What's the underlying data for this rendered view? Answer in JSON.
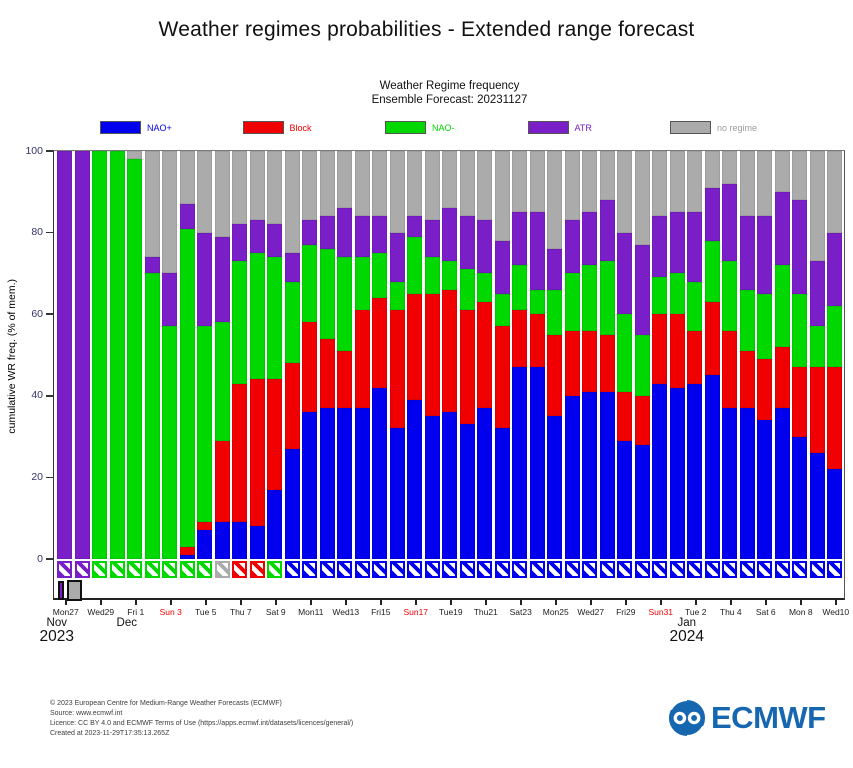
{
  "title": "Weather regimes probabilities - Extended range forecast",
  "subtitle": {
    "line1": "Weather Regime frequency",
    "line2": "Ensemble Forecast: 20231127"
  },
  "colors": {
    "nao_plus": "#0000ee",
    "block": "#f00000",
    "nao_minus": "#00d800",
    "atr": "#7a1ec8",
    "no_regime": "#ababab",
    "no_regime_label": "#9b9b9b",
    "axis_label": "#333366",
    "sunday": "#f00000",
    "tick_label": "#222222",
    "logo_blue": "#1767b0"
  },
  "legend": [
    {
      "key": "nao_plus",
      "label": "NAO+"
    },
    {
      "key": "block",
      "label": "Block"
    },
    {
      "key": "nao_minus",
      "label": "NAO-"
    },
    {
      "key": "atr",
      "label": "ATR"
    },
    {
      "key": "no_regime",
      "label": "no regime"
    }
  ],
  "y_axis": {
    "label": "cumulative WR freq. (% of mem.)",
    "ticks": [
      0,
      20,
      40,
      60,
      80,
      100
    ]
  },
  "x_axis": {
    "ticks": [
      {
        "label": "Mon27",
        "bar": 1,
        "red": false
      },
      {
        "label": "Wed29",
        "bar": 3,
        "red": false
      },
      {
        "label": "Fri 1",
        "bar": 5,
        "red": false
      },
      {
        "label": "Sun 3",
        "bar": 7,
        "red": true
      },
      {
        "label": "Tue 5",
        "bar": 9,
        "red": false
      },
      {
        "label": "Thu 7",
        "bar": 11,
        "red": false
      },
      {
        "label": "Sat 9",
        "bar": 13,
        "red": false
      },
      {
        "label": "Mon11",
        "bar": 15,
        "red": false
      },
      {
        "label": "Wed13",
        "bar": 17,
        "red": false
      },
      {
        "label": "Fri15",
        "bar": 19,
        "red": false
      },
      {
        "label": "Sun17",
        "bar": 21,
        "red": true
      },
      {
        "label": "Tue19",
        "bar": 23,
        "red": false
      },
      {
        "label": "Thu21",
        "bar": 25,
        "red": false
      },
      {
        "label": "Sat23",
        "bar": 27,
        "red": false
      },
      {
        "label": "Mon25",
        "bar": 29,
        "red": false
      },
      {
        "label": "Wed27",
        "bar": 31,
        "red": false
      },
      {
        "label": "Fri29",
        "bar": 33,
        "red": false
      },
      {
        "label": "Sun31",
        "bar": 35,
        "red": true
      },
      {
        "label": "Tue 2",
        "bar": 37,
        "red": false
      },
      {
        "label": "Thu 4",
        "bar": 39,
        "red": false
      },
      {
        "label": "Sat 6",
        "bar": 41,
        "red": false
      },
      {
        "label": "Mon 8",
        "bar": 43,
        "red": false
      },
      {
        "label": "Wed10",
        "bar": 45,
        "red": false
      }
    ],
    "months": [
      {
        "label": "Nov",
        "bar": 1
      },
      {
        "label": "Dec",
        "bar": 5
      },
      {
        "label": "Jan",
        "bar": 37
      }
    ],
    "years": [
      {
        "label": "2023",
        "bar": 1
      },
      {
        "label": "2024",
        "bar": 37
      }
    ]
  },
  "analysis_markers": [
    {
      "bar": 1,
      "color_key": "atr"
    },
    {
      "bar": 2,
      "color_key": "no_regime"
    }
  ],
  "chart_data": {
    "type": "bar",
    "stacked": true,
    "title": "Weather Regime frequency",
    "subtitle": "Ensemble Forecast: 20231127",
    "ylabel": "cumulative WR freq. (% of mem.)",
    "ylim": [
      0,
      100
    ],
    "grid": false,
    "legend_position": "top",
    "stack_order": [
      "nao_plus",
      "block",
      "nao_minus",
      "atr",
      "no_regime"
    ],
    "series_labels": {
      "nao_plus": "NAO+",
      "block": "Block",
      "nao_minus": "NAO-",
      "atr": "ATR",
      "no_regime": "no regime"
    },
    "hatch_note": "hatch = dominant regime marker drawn below the 0-line for each day",
    "bars": [
      {
        "date": "Mon 27 Nov 2023",
        "nao_plus": 0,
        "block": 0,
        "nao_minus": 0,
        "atr": 100,
        "no_regime": 0,
        "hatch": "atr"
      },
      {
        "date": "Tue 28 Nov",
        "nao_plus": 0,
        "block": 0,
        "nao_minus": 0,
        "atr": 100,
        "no_regime": 0,
        "hatch": "atr"
      },
      {
        "date": "Wed 29 Nov",
        "nao_plus": 0,
        "block": 0,
        "nao_minus": 100,
        "atr": 0,
        "no_regime": 0,
        "hatch": "nao_minus"
      },
      {
        "date": "Thu 30 Nov",
        "nao_plus": 0,
        "block": 0,
        "nao_minus": 100,
        "atr": 0,
        "no_regime": 0,
        "hatch": "nao_minus"
      },
      {
        "date": "Fri 1 Dec",
        "nao_plus": 0,
        "block": 0,
        "nao_minus": 98,
        "atr": 0,
        "no_regime": 2,
        "hatch": "nao_minus"
      },
      {
        "date": "Sat 2 Dec",
        "nao_plus": 0,
        "block": 0,
        "nao_minus": 70,
        "atr": 4,
        "no_regime": 26,
        "hatch": "nao_minus"
      },
      {
        "date": "Sun 3 Dec",
        "nao_plus": 0,
        "block": 0,
        "nao_minus": 57,
        "atr": 13,
        "no_regime": 30,
        "hatch": "nao_minus"
      },
      {
        "date": "Mon 4 Dec",
        "nao_plus": 1,
        "block": 2,
        "nao_minus": 78,
        "atr": 6,
        "no_regime": 13,
        "hatch": "nao_minus"
      },
      {
        "date": "Tue 5 Dec",
        "nao_plus": 7,
        "block": 2,
        "nao_minus": 48,
        "atr": 23,
        "no_regime": 20,
        "hatch": "nao_minus"
      },
      {
        "date": "Wed 6 Dec",
        "nao_plus": 9,
        "block": 20,
        "nao_minus": 29,
        "atr": 21,
        "no_regime": 21,
        "hatch": "no_regime"
      },
      {
        "date": "Thu 7 Dec",
        "nao_plus": 9,
        "block": 34,
        "nao_minus": 30,
        "atr": 9,
        "no_regime": 18,
        "hatch": "block"
      },
      {
        "date": "Fri 8 Dec",
        "nao_plus": 8,
        "block": 36,
        "nao_minus": 31,
        "atr": 8,
        "no_regime": 17,
        "hatch": "block"
      },
      {
        "date": "Sat 9 Dec",
        "nao_plus": 17,
        "block": 27,
        "nao_minus": 30,
        "atr": 8,
        "no_regime": 18,
        "hatch": "nao_minus"
      },
      {
        "date": "Sun 10 Dec",
        "nao_plus": 27,
        "block": 21,
        "nao_minus": 20,
        "atr": 7,
        "no_regime": 25,
        "hatch": "nao_plus"
      },
      {
        "date": "Mon 11 Dec",
        "nao_plus": 36,
        "block": 22,
        "nao_minus": 19,
        "atr": 6,
        "no_regime": 17,
        "hatch": "nao_plus"
      },
      {
        "date": "Tue 12 Dec",
        "nao_plus": 37,
        "block": 17,
        "nao_minus": 22,
        "atr": 8,
        "no_regime": 16,
        "hatch": "nao_plus"
      },
      {
        "date": "Wed 13 Dec",
        "nao_plus": 37,
        "block": 14,
        "nao_minus": 23,
        "atr": 12,
        "no_regime": 14,
        "hatch": "nao_plus"
      },
      {
        "date": "Thu 14 Dec",
        "nao_plus": 37,
        "block": 24,
        "nao_minus": 13,
        "atr": 10,
        "no_regime": 16,
        "hatch": "nao_plus"
      },
      {
        "date": "Fri 15 Dec",
        "nao_plus": 42,
        "block": 22,
        "nao_minus": 11,
        "atr": 9,
        "no_regime": 16,
        "hatch": "nao_plus"
      },
      {
        "date": "Sat 16 Dec",
        "nao_plus": 32,
        "block": 29,
        "nao_minus": 7,
        "atr": 12,
        "no_regime": 20,
        "hatch": "nao_plus"
      },
      {
        "date": "Sun 17 Dec",
        "nao_plus": 39,
        "block": 26,
        "nao_minus": 14,
        "atr": 5,
        "no_regime": 16,
        "hatch": "nao_plus"
      },
      {
        "date": "Mon 18 Dec",
        "nao_plus": 35,
        "block": 30,
        "nao_minus": 9,
        "atr": 9,
        "no_regime": 17,
        "hatch": "nao_plus"
      },
      {
        "date": "Tue 19 Dec",
        "nao_plus": 36,
        "block": 30,
        "nao_minus": 7,
        "atr": 13,
        "no_regime": 14,
        "hatch": "nao_plus"
      },
      {
        "date": "Wed 20 Dec",
        "nao_plus": 33,
        "block": 28,
        "nao_minus": 10,
        "atr": 13,
        "no_regime": 16,
        "hatch": "nao_plus"
      },
      {
        "date": "Thu 21 Dec",
        "nao_plus": 37,
        "block": 26,
        "nao_minus": 7,
        "atr": 13,
        "no_regime": 17,
        "hatch": "nao_plus"
      },
      {
        "date": "Fri 22 Dec",
        "nao_plus": 32,
        "block": 25,
        "nao_minus": 8,
        "atr": 13,
        "no_regime": 22,
        "hatch": "nao_plus"
      },
      {
        "date": "Sat 23 Dec",
        "nao_plus": 47,
        "block": 14,
        "nao_minus": 11,
        "atr": 13,
        "no_regime": 15,
        "hatch": "nao_plus"
      },
      {
        "date": "Sun 24 Dec",
        "nao_plus": 47,
        "block": 13,
        "nao_minus": 6,
        "atr": 19,
        "no_regime": 15,
        "hatch": "nao_plus"
      },
      {
        "date": "Mon 25 Dec",
        "nao_plus": 35,
        "block": 20,
        "nao_minus": 11,
        "atr": 10,
        "no_regime": 24,
        "hatch": "nao_plus"
      },
      {
        "date": "Tue 26 Dec",
        "nao_plus": 40,
        "block": 16,
        "nao_minus": 14,
        "atr": 13,
        "no_regime": 17,
        "hatch": "nao_plus"
      },
      {
        "date": "Wed 27 Dec",
        "nao_plus": 41,
        "block": 15,
        "nao_minus": 16,
        "atr": 13,
        "no_regime": 15,
        "hatch": "nao_plus"
      },
      {
        "date": "Thu 28 Dec",
        "nao_plus": 41,
        "block": 14,
        "nao_minus": 18,
        "atr": 15,
        "no_regime": 12,
        "hatch": "nao_plus"
      },
      {
        "date": "Fri 29 Dec",
        "nao_plus": 29,
        "block": 12,
        "nao_minus": 19,
        "atr": 20,
        "no_regime": 20,
        "hatch": "nao_plus"
      },
      {
        "date": "Sat 30 Dec",
        "nao_plus": 28,
        "block": 12,
        "nao_minus": 15,
        "atr": 22,
        "no_regime": 23,
        "hatch": "nao_plus"
      },
      {
        "date": "Sun 31 Dec",
        "nao_plus": 43,
        "block": 17,
        "nao_minus": 9,
        "atr": 15,
        "no_regime": 16,
        "hatch": "nao_plus"
      },
      {
        "date": "Mon 1 Jan 2024",
        "nao_plus": 42,
        "block": 18,
        "nao_minus": 10,
        "atr": 15,
        "no_regime": 15,
        "hatch": "nao_plus"
      },
      {
        "date": "Tue 2 Jan",
        "nao_plus": 43,
        "block": 13,
        "nao_minus": 12,
        "atr": 17,
        "no_regime": 15,
        "hatch": "nao_plus"
      },
      {
        "date": "Wed 3 Jan",
        "nao_plus": 45,
        "block": 18,
        "nao_minus": 15,
        "atr": 13,
        "no_regime": 9,
        "hatch": "nao_plus"
      },
      {
        "date": "Thu 4 Jan",
        "nao_plus": 37,
        "block": 19,
        "nao_minus": 17,
        "atr": 19,
        "no_regime": 8,
        "hatch": "nao_plus"
      },
      {
        "date": "Fri 5 Jan",
        "nao_plus": 37,
        "block": 14,
        "nao_minus": 15,
        "atr": 18,
        "no_regime": 16,
        "hatch": "nao_plus"
      },
      {
        "date": "Sat 6 Jan",
        "nao_plus": 34,
        "block": 15,
        "nao_minus": 16,
        "atr": 19,
        "no_regime": 16,
        "hatch": "nao_plus"
      },
      {
        "date": "Sun 7 Jan",
        "nao_plus": 37,
        "block": 15,
        "nao_minus": 20,
        "atr": 18,
        "no_regime": 10,
        "hatch": "nao_plus"
      },
      {
        "date": "Mon 8 Jan",
        "nao_plus": 30,
        "block": 17,
        "nao_minus": 18,
        "atr": 23,
        "no_regime": 12,
        "hatch": "nao_plus"
      },
      {
        "date": "Tue 9 Jan",
        "nao_plus": 26,
        "block": 21,
        "nao_minus": 10,
        "atr": 16,
        "no_regime": 27,
        "hatch": "nao_plus"
      },
      {
        "date": "Wed 10 Jan",
        "nao_plus": 22,
        "block": 25,
        "nao_minus": 15,
        "atr": 18,
        "no_regime": 20,
        "hatch": "nao_plus"
      }
    ]
  },
  "footer": {
    "lines": [
      "© 2023 European Centre for Medium-Range Weather Forecasts (ECMWF)",
      "Source: www.ecmwf.int",
      "Licence: CC BY 4.0 and ECMWF Terms of Use (https://apps.ecmwf.int/datasets/licences/general/)",
      "Created at 2023-11-29T17:35:13.265Z"
    ]
  },
  "logo": {
    "text": "ECMWF"
  }
}
